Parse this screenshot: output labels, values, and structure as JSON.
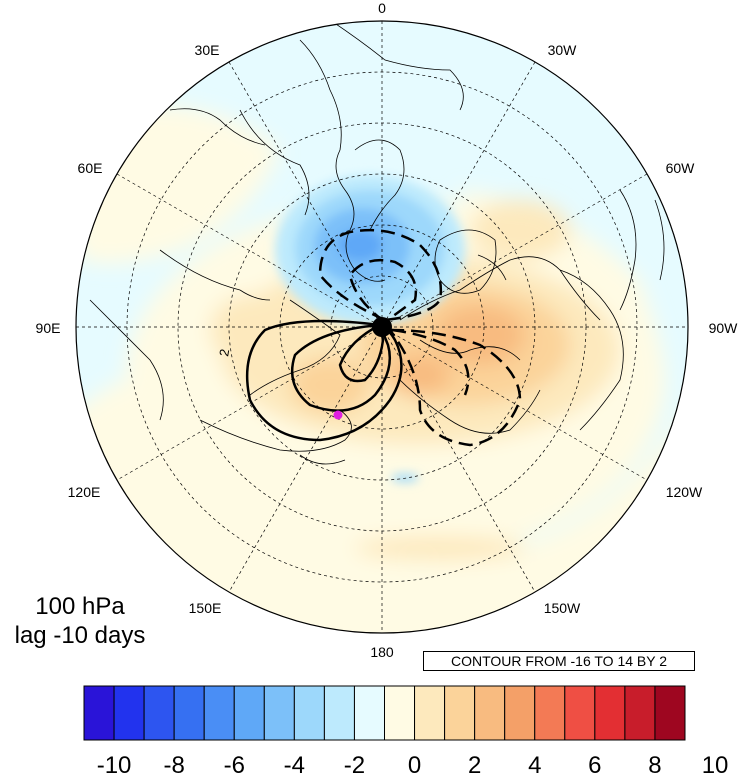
{
  "map": {
    "projection": "north-polar-stereographic",
    "longitude_labels": [
      {
        "text": "0",
        "lon": 0
      },
      {
        "text": "30W",
        "lon": -30
      },
      {
        "text": "60W",
        "lon": -60
      },
      {
        "text": "90W",
        "lon": -90
      },
      {
        "text": "120W",
        "lon": -120
      },
      {
        "text": "150W",
        "lon": -150
      },
      {
        "text": "180",
        "lon": 180
      },
      {
        "text": "150E",
        "lon": 150
      },
      {
        "text": "120E",
        "lon": 120
      },
      {
        "text": "90E",
        "lon": 90
      },
      {
        "text": "60E",
        "lon": 60
      },
      {
        "text": "30E",
        "lon": 30
      }
    ],
    "marker_color": "#e020e0"
  },
  "title": {
    "line1": "100 hPa",
    "line2": "lag -10 days"
  },
  "contour_info": "CONTOUR FROM -16 TO 14 BY 2",
  "contour_labels": [
    "2"
  ],
  "colorbar": {
    "colors": [
      "#2a14d8",
      "#2233ee",
      "#2d55f0",
      "#3670f2",
      "#4a8ef5",
      "#5fa8f7",
      "#7cc0f9",
      "#9dd8fb",
      "#bdeafd",
      "#e6fbff",
      "#fffbe4",
      "#fde9bd",
      "#fbd39a",
      "#f8bb80",
      "#f4a068",
      "#f37a55",
      "#ef4f44",
      "#e32f33",
      "#c81d2b",
      "#9e0620"
    ],
    "tick_labels": [
      "-10",
      "-8",
      "-6",
      "-4",
      "-2",
      "0",
      "2",
      "4",
      "6",
      "8",
      "10"
    ]
  }
}
